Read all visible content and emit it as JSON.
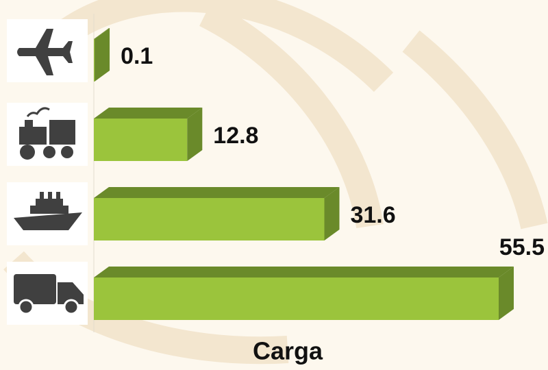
{
  "chart_data": {
    "type": "bar",
    "orientation": "horizontal",
    "title": "Carga",
    "categories": [
      null,
      null,
      null,
      null
    ],
    "values": [
      0.1,
      12.8,
      31.6,
      55.5
    ],
    "color": "#9bc43c",
    "side_color": "#6a8a2a"
  }
}
